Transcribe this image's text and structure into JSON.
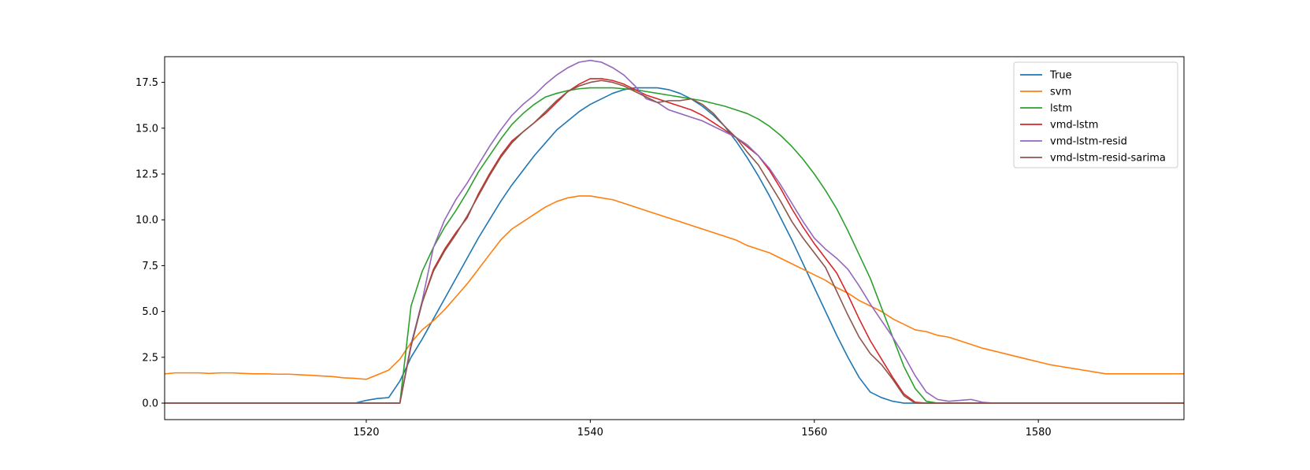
{
  "chart_data": {
    "type": "line",
    "title": "",
    "xlabel": "",
    "ylabel": "",
    "xlim": [
      1502,
      1593
    ],
    "ylim": [
      -0.9,
      18.9
    ],
    "xticks": [
      1520,
      1540,
      1560,
      1580
    ],
    "yticks": [
      0.0,
      2.5,
      5.0,
      7.5,
      10.0,
      12.5,
      15.0,
      17.5
    ],
    "xtick_labels": [
      "1520",
      "1540",
      "1560",
      "1580"
    ],
    "ytick_labels": [
      "0.0",
      "2.5",
      "5.0",
      "7.5",
      "10.0",
      "12.5",
      "15.0",
      "17.5"
    ],
    "grid": false,
    "legend_position": "top-right",
    "x_start": 1502,
    "series": [
      {
        "name": "True",
        "color": "#1f77b4",
        "values": [
          0,
          0,
          0,
          0,
          0,
          0,
          0,
          0,
          0,
          0,
          0,
          0,
          0,
          0,
          0,
          0,
          0,
          0,
          0.15,
          0.25,
          0.3,
          1.2,
          2.5,
          3.5,
          4.6,
          5.7,
          6.8,
          7.9,
          9.0,
          10.0,
          11.0,
          11.9,
          12.7,
          13.5,
          14.2,
          14.9,
          15.4,
          15.9,
          16.3,
          16.6,
          16.9,
          17.1,
          17.2,
          17.2,
          17.2,
          17.1,
          16.9,
          16.6,
          16.2,
          15.7,
          15.1,
          14.3,
          13.4,
          12.4,
          11.3,
          10.1,
          8.9,
          7.6,
          6.3,
          5.0,
          3.7,
          2.5,
          1.4,
          0.6,
          0.3,
          0.1,
          0,
          0,
          0,
          0,
          0,
          0,
          0,
          0,
          0,
          0,
          0,
          0,
          0,
          0,
          0,
          0,
          0,
          0,
          0,
          0,
          0,
          0,
          0,
          0,
          0,
          0
        ]
      },
      {
        "name": "svm",
        "color": "#ff7f0e",
        "values": [
          1.6,
          1.65,
          1.65,
          1.65,
          1.62,
          1.65,
          1.65,
          1.62,
          1.6,
          1.6,
          1.58,
          1.58,
          1.55,
          1.52,
          1.48,
          1.45,
          1.38,
          1.35,
          1.3,
          1.55,
          1.8,
          2.4,
          3.3,
          4.0,
          4.5,
          5.1,
          5.8,
          6.5,
          7.3,
          8.1,
          8.9,
          9.5,
          9.9,
          10.3,
          10.7,
          11.0,
          11.2,
          11.3,
          11.3,
          11.2,
          11.1,
          10.9,
          10.7,
          10.5,
          10.3,
          10.1,
          9.9,
          9.7,
          9.5,
          9.3,
          9.1,
          8.9,
          8.6,
          8.4,
          8.2,
          7.9,
          7.6,
          7.3,
          7.0,
          6.7,
          6.3,
          6.0,
          5.6,
          5.3,
          5.0,
          4.6,
          4.3,
          4.0,
          3.9,
          3.7,
          3.6,
          3.4,
          3.2,
          3.0,
          2.85,
          2.7,
          2.55,
          2.4,
          2.25,
          2.1,
          2.0,
          1.9,
          1.8,
          1.7,
          1.6,
          1.6,
          1.6,
          1.6,
          1.6,
          1.6,
          1.6,
          1.6
        ]
      },
      {
        "name": "lstm",
        "color": "#2ca02c",
        "values": [
          0,
          0,
          0,
          0,
          0,
          0,
          0,
          0,
          0,
          0,
          0,
          0,
          0,
          0,
          0,
          0,
          0,
          0,
          0,
          0,
          0,
          0,
          5.3,
          7.2,
          8.5,
          9.6,
          10.5,
          11.5,
          12.6,
          13.5,
          14.4,
          15.2,
          15.8,
          16.3,
          16.7,
          16.9,
          17.05,
          17.15,
          17.2,
          17.2,
          17.2,
          17.15,
          17.1,
          17.0,
          16.9,
          16.8,
          16.7,
          16.6,
          16.5,
          16.35,
          16.2,
          16.0,
          15.8,
          15.5,
          15.1,
          14.6,
          14.0,
          13.3,
          12.5,
          11.6,
          10.6,
          9.4,
          8.1,
          6.8,
          5.2,
          3.6,
          2.0,
          0.8,
          0.1,
          0,
          0,
          0,
          0,
          0,
          0,
          0,
          0,
          0,
          0,
          0,
          0,
          0,
          0,
          0,
          0,
          0,
          0,
          0,
          0,
          0,
          0,
          0
        ]
      },
      {
        "name": "vmd-lstm",
        "color": "#d62728",
        "values": [
          0,
          0,
          0,
          0,
          0,
          0,
          0,
          0,
          0,
          0,
          0,
          0,
          0,
          0,
          0,
          0,
          0,
          0,
          0,
          0,
          0,
          0,
          3.2,
          5.5,
          7.3,
          8.4,
          9.3,
          10.1,
          11.4,
          12.5,
          13.5,
          14.3,
          14.8,
          15.3,
          15.8,
          16.4,
          17.0,
          17.4,
          17.7,
          17.7,
          17.6,
          17.4,
          17.1,
          16.8,
          16.6,
          16.4,
          16.2,
          16.0,
          15.7,
          15.3,
          14.9,
          14.5,
          14.0,
          13.5,
          12.7,
          11.7,
          10.6,
          9.6,
          8.7,
          7.9,
          7.1,
          5.9,
          4.6,
          3.4,
          2.4,
          1.4,
          0.5,
          0.05,
          0,
          0,
          0,
          0,
          0,
          0,
          0,
          0,
          0,
          0,
          0,
          0,
          0,
          0,
          0,
          0,
          0,
          0,
          0,
          0,
          0,
          0,
          0,
          0
        ]
      },
      {
        "name": "vmd-lstm-resid",
        "color": "#9467bd",
        "values": [
          0,
          0,
          0,
          0,
          0,
          0,
          0,
          0,
          0,
          0,
          0,
          0,
          0,
          0,
          0,
          0,
          0,
          0,
          0,
          0,
          0,
          0,
          3.2,
          5.6,
          8.5,
          10.0,
          11.1,
          12.0,
          13.0,
          14.0,
          14.9,
          15.7,
          16.3,
          16.8,
          17.4,
          17.9,
          18.3,
          18.6,
          18.7,
          18.6,
          18.3,
          17.9,
          17.3,
          16.6,
          16.4,
          16.0,
          15.8,
          15.6,
          15.4,
          15.1,
          14.8,
          14.5,
          14.1,
          13.5,
          12.8,
          11.9,
          10.9,
          9.9,
          9.0,
          8.4,
          7.9,
          7.3,
          6.4,
          5.4,
          4.5,
          3.6,
          2.6,
          1.5,
          0.6,
          0.2,
          0.1,
          0.15,
          0.2,
          0.05,
          0,
          0,
          0,
          0,
          0,
          0,
          0,
          0,
          0,
          0,
          0,
          0,
          0,
          0,
          0,
          0
        ]
      },
      {
        "name": "vmd-lstm-resid-sarima",
        "color": "#8c564b",
        "values": [
          0,
          0,
          0,
          0,
          0,
          0,
          0,
          0,
          0,
          0,
          0,
          0,
          0,
          0,
          0,
          0,
          0,
          0,
          0,
          0,
          0,
          0,
          3.1,
          5.5,
          7.2,
          8.3,
          9.2,
          10.2,
          11.3,
          12.4,
          13.4,
          14.2,
          14.8,
          15.3,
          15.9,
          16.5,
          17.0,
          17.3,
          17.5,
          17.6,
          17.5,
          17.3,
          17.0,
          16.7,
          16.4,
          16.5,
          16.5,
          16.6,
          16.3,
          15.8,
          15.1,
          14.5,
          13.7,
          13.0,
          12.0,
          11.0,
          9.9,
          9.0,
          8.2,
          7.4,
          6.1,
          4.8,
          3.6,
          2.7,
          2.1,
          1.3,
          0.4,
          0,
          0,
          0,
          0,
          0,
          0,
          0,
          0,
          0,
          0,
          0,
          0,
          0,
          0,
          0,
          0,
          0,
          0,
          0,
          0,
          0,
          0,
          0,
          0,
          0
        ]
      }
    ]
  }
}
